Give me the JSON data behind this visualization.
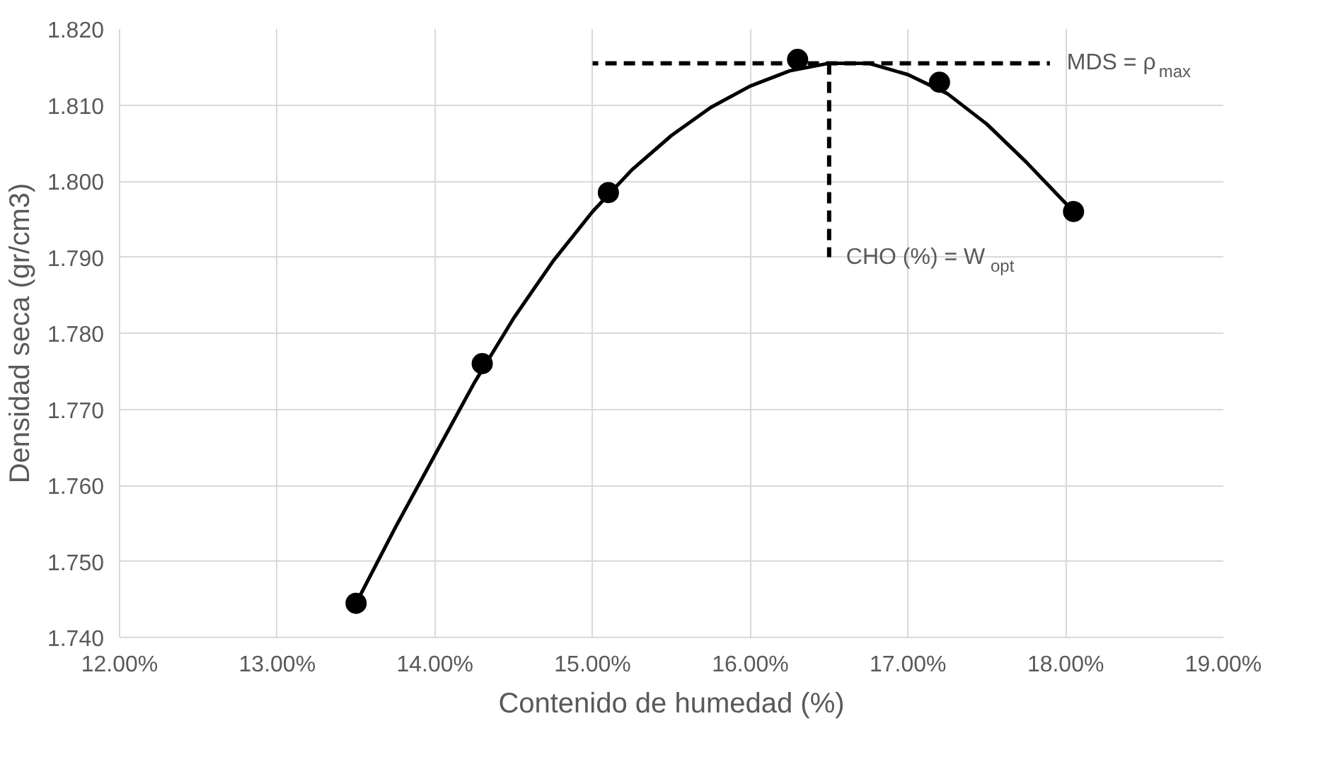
{
  "chart_data": {
    "type": "scatter",
    "xlabel": "Contenido de humedad (%)",
    "ylabel": "Densidad seca (gr/cm3)",
    "x": [
      13.5,
      14.3,
      15.1,
      16.3,
      17.2,
      18.05
    ],
    "series": [
      {
        "type": "scatter",
        "color": "#000000",
        "marker": "circle",
        "values": [
          1.7445,
          1.776,
          1.7985,
          1.816,
          1.813,
          1.796
        ]
      },
      {
        "type": "line",
        "color": "#000000",
        "line_style": "solid",
        "x": [
          13.5,
          13.75,
          14.0,
          14.25,
          14.5,
          14.75,
          15.0,
          15.25,
          15.5,
          15.75,
          16.0,
          16.25,
          16.5,
          16.75,
          17.0,
          17.25,
          17.5,
          17.75,
          18.05
        ],
        "values": [
          1.7445,
          1.7545,
          1.764,
          1.7735,
          1.782,
          1.7895,
          1.796,
          1.8015,
          1.806,
          1.8097,
          1.8125,
          1.8145,
          1.8155,
          1.8155,
          1.814,
          1.8115,
          1.8075,
          1.8025,
          1.796
        ]
      },
      {
        "type": "line",
        "color": "#000000",
        "line_style": "dashed",
        "x": [
          15.0,
          17.9
        ],
        "values": [
          1.8155,
          1.8155
        ]
      },
      {
        "type": "line",
        "color": "#000000",
        "line_style": "dashed",
        "x": [
          16.5,
          16.5
        ],
        "values": [
          1.8155,
          1.79
        ]
      }
    ],
    "annotations": [
      "MDS = ρ$_{max}$",
      "CHO (%) = W$_{opt}$"
    ],
    "xlim": [
      12,
      19
    ],
    "xticks": [
      {
        "value": 12,
        "label": "12.00%"
      },
      {
        "value": 13,
        "label": "13.00%"
      },
      {
        "value": 14,
        "label": "14.00%"
      },
      {
        "value": 15,
        "label": "15.00%"
      },
      {
        "value": 16,
        "label": "16.00%"
      },
      {
        "value": 17,
        "label": "17.00%"
      },
      {
        "value": 18,
        "label": "18.00%"
      },
      {
        "value": 19,
        "label": "19.00%"
      }
    ],
    "ylim": [
      1.74,
      1.82
    ],
    "yticks": [
      {
        "value": 1.74,
        "label": "1.740"
      },
      {
        "value": 1.75,
        "label": "1.750"
      },
      {
        "value": 1.76,
        "label": "1.760"
      },
      {
        "value": 1.77,
        "label": "1.770"
      },
      {
        "value": 1.78,
        "label": "1.780"
      },
      {
        "value": 1.79,
        "label": "1.790"
      },
      {
        "value": 1.8,
        "label": "1.800"
      },
      {
        "value": 1.81,
        "label": "1.810"
      },
      {
        "value": 1.82,
        "label": "1.820"
      }
    ],
    "grid": true
  }
}
